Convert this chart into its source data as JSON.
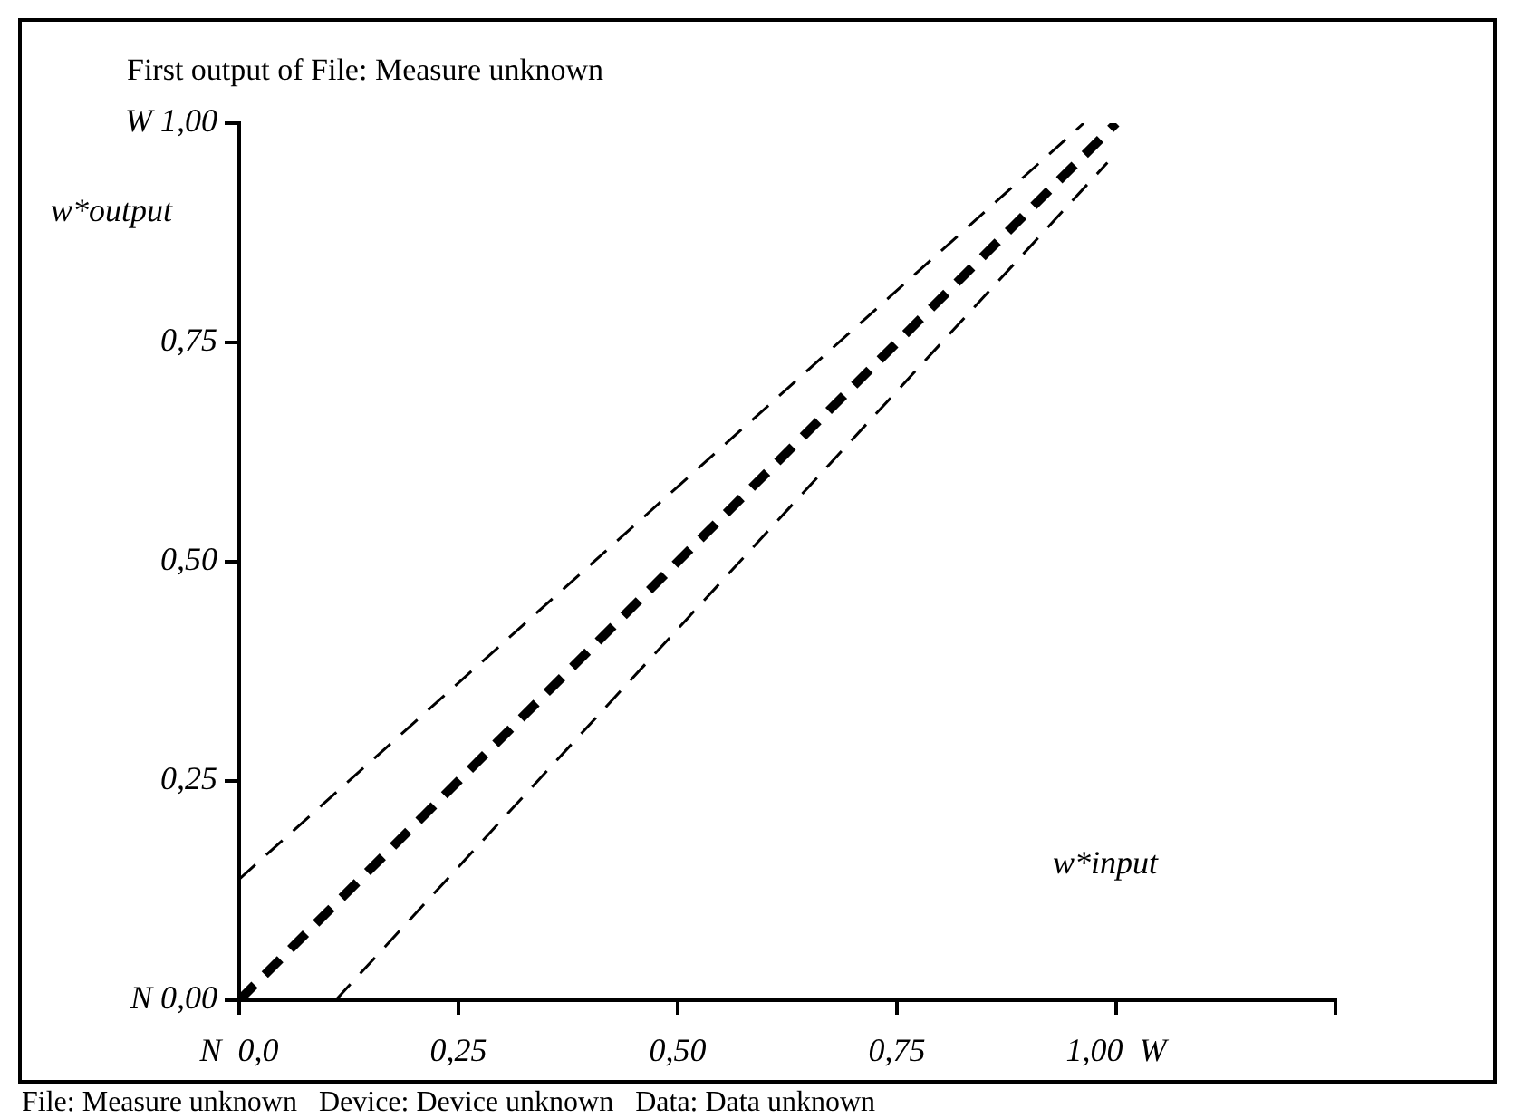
{
  "chart_data": {
    "type": "line",
    "title": "First output of File: Measure unknown",
    "xlabel": "w*input",
    "ylabel": "w*output",
    "annotations": [
      "File: Measure unknown   Device: Device unknown   Data: Data unknown"
    ],
    "xlim": [
      0,
      1.25
    ],
    "ylim": [
      0,
      1
    ],
    "xticks": [
      {
        "value": 0,
        "label": "N  0,0"
      },
      {
        "value": 0.25,
        "label": "0,25"
      },
      {
        "value": 0.5,
        "label": "0,50"
      },
      {
        "value": 0.75,
        "label": "0,75"
      },
      {
        "value": 1,
        "label": "1,00  W"
      },
      {
        "value": 1.25,
        "label": null
      }
    ],
    "yticks": [
      {
        "value": 0,
        "label": "N 0,00"
      },
      {
        "value": 0.25,
        "label": "0,25"
      },
      {
        "value": 0.5,
        "label": "0,50"
      },
      {
        "value": 0.75,
        "label": "0,75"
      },
      {
        "value": 1,
        "label": "W 1,00"
      }
    ],
    "grid": false,
    "legend": false,
    "marker": "none",
    "series": [
      {
        "color": "#000000",
        "line_style": "dashed",
        "x": [
          0,
          1
        ],
        "values": [
          0,
          1
        ]
      },
      {
        "color": "#000000",
        "line_style": "dashed",
        "x": [
          0,
          0.963
        ],
        "values": [
          0.138,
          1
        ]
      },
      {
        "color": "#000000",
        "line_style": "dashed",
        "x": [
          0.11,
          0.99
        ],
        "values": [
          0,
          0.955
        ]
      }
    ]
  }
}
